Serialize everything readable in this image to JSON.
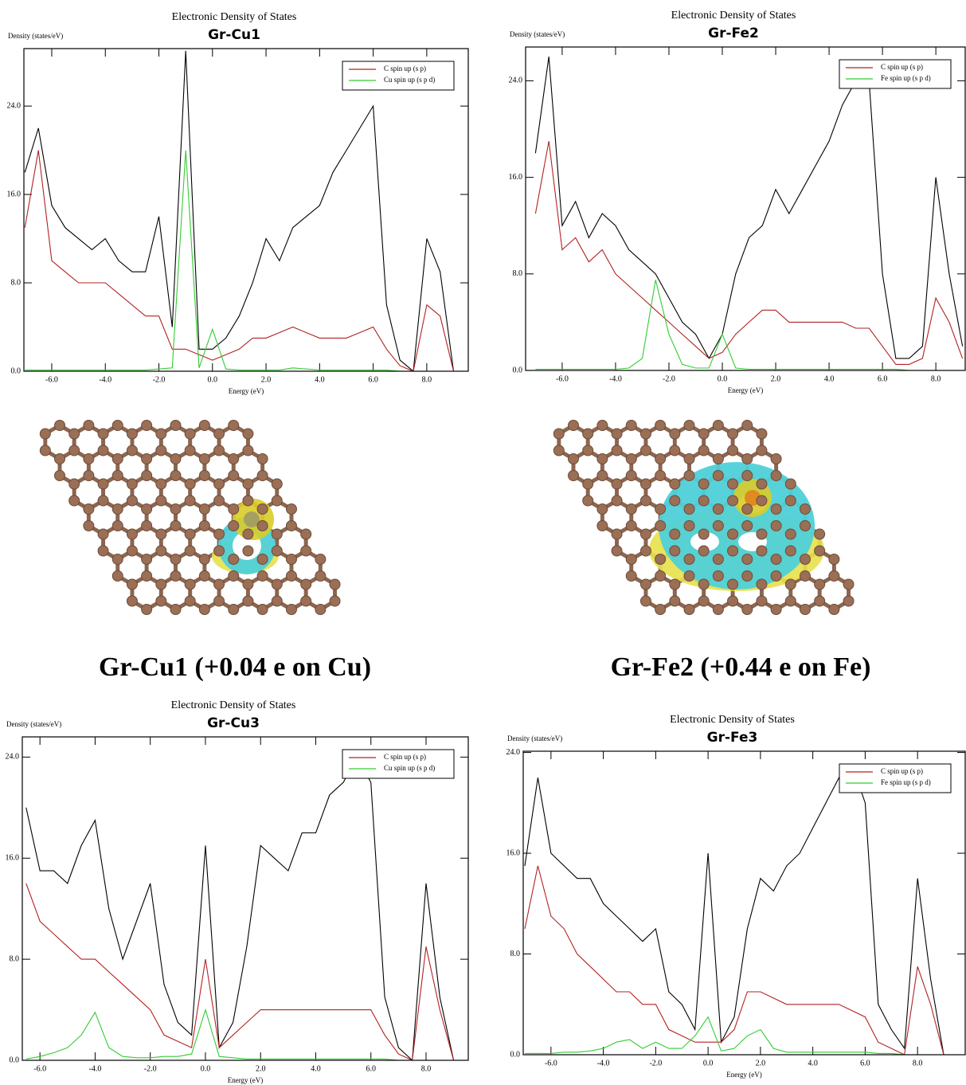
{
  "chart_data": [
    {
      "type": "line",
      "title": "Electronic Density of States",
      "subtitle": "Gr-Cu1",
      "y_label": "Density (states/eV)",
      "x_label": "Energy (eV)",
      "legend": "upper right",
      "xlim": [
        -7.04,
        9.55
      ],
      "ylim": [
        0,
        29.2
      ],
      "xticks": [
        {
          "value": -6,
          "label": "-6.0"
        },
        {
          "value": -4,
          "label": "-4.0"
        },
        {
          "value": -2,
          "label": "-2.0"
        },
        {
          "value": 0,
          "label": "0.0"
        },
        {
          "value": 2,
          "label": "2.0"
        },
        {
          "value": 4,
          "label": "4.0"
        },
        {
          "value": 6,
          "label": "6.0"
        },
        {
          "value": 8,
          "label": "8.0"
        }
      ],
      "yticks": [
        {
          "value": 0,
          "label": "0.0"
        },
        {
          "value": 8,
          "label": "8.0"
        },
        {
          "value": 16,
          "label": "16.0"
        },
        {
          "value": 24,
          "label": "24.0"
        }
      ],
      "x": [
        -7.0,
        -6.5,
        -6.0,
        -5.5,
        -5.0,
        -4.5,
        -4.0,
        -3.5,
        -3.0,
        -2.5,
        -2.0,
        -1.5,
        -1.0,
        -0.5,
        0.0,
        0.5,
        1.0,
        1.5,
        2.0,
        2.5,
        3.0,
        3.5,
        4.0,
        4.5,
        5.0,
        5.5,
        6.0,
        6.5,
        7.0,
        7.5,
        8.0,
        8.5,
        9.0,
        9.5
      ],
      "series": [
        {
          "color": "#000000",
          "values": [
            18,
            22,
            15,
            13,
            12,
            11,
            12,
            10,
            9,
            9,
            14,
            4,
            29,
            2,
            2,
            3,
            5,
            8,
            12,
            10,
            13,
            14,
            15,
            18,
            20,
            22,
            24,
            6,
            1,
            0,
            12,
            9,
            0,
            0
          ]
        },
        {
          "name": "C spin up (s p)",
          "color": "#b22222",
          "values": [
            13,
            20,
            10,
            9,
            8,
            8,
            8,
            7,
            6,
            5,
            5,
            2,
            2,
            1.5,
            1,
            1.5,
            2,
            3,
            3,
            3.5,
            4,
            3.5,
            3,
            3,
            3,
            3.5,
            4,
            2,
            0.5,
            0,
            6,
            5,
            0,
            0
          ]
        },
        {
          "name": "Cu spin up (s p d)",
          "color": "#33cc33",
          "values": [
            0.1,
            0.1,
            0.1,
            0.1,
            0.1,
            0.1,
            0.1,
            0.1,
            0.1,
            0.1,
            0.2,
            0.3,
            20,
            0.3,
            3.8,
            0.2,
            0.1,
            0.1,
            0.1,
            0.1,
            0.3,
            0.2,
            0.1,
            0.1,
            0.1,
            0.1,
            0.1,
            0.1,
            0,
            0,
            0,
            0,
            0,
            0
          ]
        }
      ]
    },
    {
      "type": "line",
      "title": "Electronic Density of States",
      "subtitle": "Gr-Fe2",
      "y_label": "Density (states/eV)",
      "x_label": "Energy (eV)",
      "legend": "upper right",
      "xlim": [
        -7.37,
        9.1
      ],
      "ylim": [
        0,
        26.8
      ],
      "xticks": [
        {
          "value": -6,
          "label": "-6.0"
        },
        {
          "value": -4,
          "label": "-4.0"
        },
        {
          "value": -2,
          "label": "-2.0"
        },
        {
          "value": 0,
          "label": "0.0"
        },
        {
          "value": 2,
          "label": "2.0"
        },
        {
          "value": 4,
          "label": "4.0"
        },
        {
          "value": 6,
          "label": "6.0"
        },
        {
          "value": 8,
          "label": "8.0"
        }
      ],
      "yticks": [
        {
          "value": 0,
          "label": "0.0"
        },
        {
          "value": 8,
          "label": "8.0"
        },
        {
          "value": 16,
          "label": "16.0"
        },
        {
          "value": 24,
          "label": "24.0"
        }
      ],
      "x": [
        -7.0,
        -6.5,
        -6.0,
        -5.5,
        -5.0,
        -4.5,
        -4.0,
        -3.5,
        -3.0,
        -2.5,
        -2.0,
        -1.5,
        -1.0,
        -0.5,
        0.0,
        0.5,
        1.0,
        1.5,
        2.0,
        2.5,
        3.0,
        3.5,
        4.0,
        4.5,
        5.0,
        5.5,
        6.0,
        6.5,
        7.0,
        7.5,
        8.0,
        8.5,
        9.0
      ],
      "series": [
        {
          "color": "#000000",
          "values": [
            18,
            26,
            12,
            14,
            11,
            13,
            12,
            10,
            9,
            8,
            6,
            4,
            3,
            1,
            3,
            8,
            11,
            12,
            15,
            13,
            15,
            17,
            19,
            22,
            24,
            24,
            8,
            1,
            1,
            2,
            16,
            8,
            2
          ]
        },
        {
          "name": "C spin up (s p)",
          "color": "#b22222",
          "values": [
            13,
            19,
            10,
            11,
            9,
            10,
            8,
            7,
            6,
            5,
            4,
            3,
            2,
            1,
            1.5,
            3,
            4,
            5,
            5,
            4,
            4,
            4,
            4,
            4,
            3.5,
            3.5,
            2,
            0.5,
            0.5,
            1,
            6,
            4,
            1
          ]
        },
        {
          "name": "Fe spin up (s p d)",
          "color": "#33cc33",
          "values": [
            0.1,
            0.1,
            0.1,
            0.1,
            0.1,
            0.1,
            0.1,
            0.2,
            1,
            7.5,
            3,
            0.5,
            0.2,
            0.2,
            3,
            0.2,
            0.1,
            0.1,
            0.1,
            0.1,
            0.1,
            0.1,
            0.1,
            0.1,
            0.1,
            0.1,
            0.1,
            0.1,
            0,
            0,
            0,
            0,
            0
          ]
        }
      ]
    },
    {
      "type": "line",
      "title": "Electronic Density of States",
      "subtitle": "Gr-Cu3",
      "y_label": "Density (states/eV)",
      "x_label": "Energy (eV)",
      "legend": "upper right",
      "xlim": [
        -6.64,
        9.53
      ],
      "ylim": [
        0,
        25.6
      ],
      "xticks": [
        {
          "value": -6,
          "label": "-6.0"
        },
        {
          "value": -4,
          "label": "-4.0"
        },
        {
          "value": -2,
          "label": "-2.0"
        },
        {
          "value": 0,
          "label": "0.0"
        },
        {
          "value": 2,
          "label": "2.0"
        },
        {
          "value": 4,
          "label": "4.0"
        },
        {
          "value": 6,
          "label": "6.0"
        },
        {
          "value": 8,
          "label": "8.0"
        }
      ],
      "yticks": [
        {
          "value": 0,
          "label": "0.0"
        },
        {
          "value": 8,
          "label": "8.0"
        },
        {
          "value": 16,
          "label": "16.0"
        },
        {
          "value": 24,
          "label": "24.0"
        }
      ],
      "x": [
        -6.5,
        -6.0,
        -5.5,
        -5.0,
        -4.5,
        -4.0,
        -3.5,
        -3.0,
        -2.5,
        -2.0,
        -1.5,
        -1.0,
        -0.5,
        0.0,
        0.5,
        1.0,
        1.5,
        2.0,
        2.5,
        3.0,
        3.5,
        4.0,
        4.5,
        5.0,
        5.5,
        6.0,
        6.5,
        7.0,
        7.5,
        8.0,
        8.5,
        9.0,
        9.5
      ],
      "series": [
        {
          "color": "#000000",
          "values": [
            20,
            15,
            15,
            14,
            17,
            19,
            12,
            8,
            11,
            14,
            6,
            3,
            2,
            17,
            1,
            3,
            9,
            17,
            16,
            15,
            18,
            18,
            21,
            22,
            24,
            22,
            5,
            1,
            0,
            14,
            5,
            0,
            0
          ]
        },
        {
          "name": "C spin up (s p)",
          "color": "#b22222",
          "values": [
            14,
            11,
            10,
            9,
            8,
            8,
            7,
            6,
            5,
            4,
            2,
            1.5,
            1,
            8,
            1,
            2,
            3,
            4,
            4,
            4,
            4,
            4,
            4,
            4,
            4,
            4,
            2,
            0.5,
            0,
            9,
            4,
            0,
            0
          ]
        },
        {
          "name": "Cu spin up (s p d)",
          "color": "#33cc33",
          "values": [
            0.1,
            0.3,
            0.6,
            1,
            2,
            3.8,
            1,
            0.3,
            0.2,
            0.2,
            0.3,
            0.3,
            0.5,
            4,
            0.3,
            0.2,
            0.1,
            0.1,
            0.1,
            0.1,
            0.1,
            0.1,
            0.1,
            0.1,
            0.1,
            0.1,
            0.1,
            0,
            0,
            0,
            0,
            0,
            0
          ]
        }
      ]
    },
    {
      "type": "line",
      "title": "Electronic Density of States",
      "subtitle": "Gr-Fe3",
      "y_label": "Density (states/eV)",
      "x_label": "Energy (eV)",
      "legend": "upper right",
      "xlim": [
        -7.06,
        9.82
      ],
      "ylim": [
        0,
        24.1
      ],
      "xticks": [
        {
          "value": -6,
          "label": "-6.0"
        },
        {
          "value": -4,
          "label": "-4.0"
        },
        {
          "value": -2,
          "label": "-2.0"
        },
        {
          "value": 0,
          "label": "0.0"
        },
        {
          "value": 2,
          "label": "2.0"
        },
        {
          "value": 4,
          "label": "4.0"
        },
        {
          "value": 6,
          "label": "6.0"
        },
        {
          "value": 8,
          "label": "8.0"
        }
      ],
      "yticks": [
        {
          "value": 0,
          "label": "0.0"
        },
        {
          "value": 8,
          "label": "8.0"
        },
        {
          "value": 16,
          "label": "16.0"
        },
        {
          "value": 24,
          "label": "24.0"
        }
      ],
      "x": [
        -7.0,
        -6.5,
        -6.0,
        -5.5,
        -5.0,
        -4.5,
        -4.0,
        -3.5,
        -3.0,
        -2.5,
        -2.0,
        -1.5,
        -1.0,
        -0.5,
        0.0,
        0.5,
        1.0,
        1.5,
        2.0,
        2.5,
        3.0,
        3.5,
        4.0,
        4.5,
        5.0,
        5.5,
        6.0,
        6.5,
        7.0,
        7.5,
        8.0,
        8.5,
        9.0,
        9.5
      ],
      "series": [
        {
          "color": "#000000",
          "values": [
            15,
            22,
            16,
            15,
            14,
            14,
            12,
            11,
            10,
            9,
            10,
            5,
            4,
            2,
            16,
            1,
            3,
            10,
            14,
            13,
            15,
            16,
            18,
            20,
            22,
            23,
            20,
            4,
            2,
            0.5,
            14,
            6,
            0,
            0
          ]
        },
        {
          "name": "C spin up (s p)",
          "color": "#b22222",
          "values": [
            10,
            15,
            11,
            10,
            8,
            7,
            6,
            5,
            5,
            4,
            4,
            2,
            1.5,
            1,
            1,
            1,
            2,
            5,
            5,
            4.5,
            4,
            4,
            4,
            4,
            4,
            3.5,
            3,
            1,
            0.5,
            0,
            7,
            4,
            0,
            0
          ]
        },
        {
          "name": "Fe spin up (s p d)",
          "color": "#33cc33",
          "values": [
            0.1,
            0.1,
            0.1,
            0.2,
            0.2,
            0.3,
            0.5,
            1,
            1.2,
            0.5,
            1,
            0.5,
            0.5,
            1.5,
            3,
            0.3,
            0.5,
            1.5,
            2,
            0.5,
            0.2,
            0.2,
            0.2,
            0.2,
            0.2,
            0.2,
            0.2,
            0.1,
            0.1,
            0,
            0,
            0,
            0,
            0
          ]
        }
      ]
    }
  ],
  "captions": [
    "Gr-Cu1 (+0.04 e on Cu)",
    "Gr-Fe2 (+0.44 e on Fe)"
  ]
}
